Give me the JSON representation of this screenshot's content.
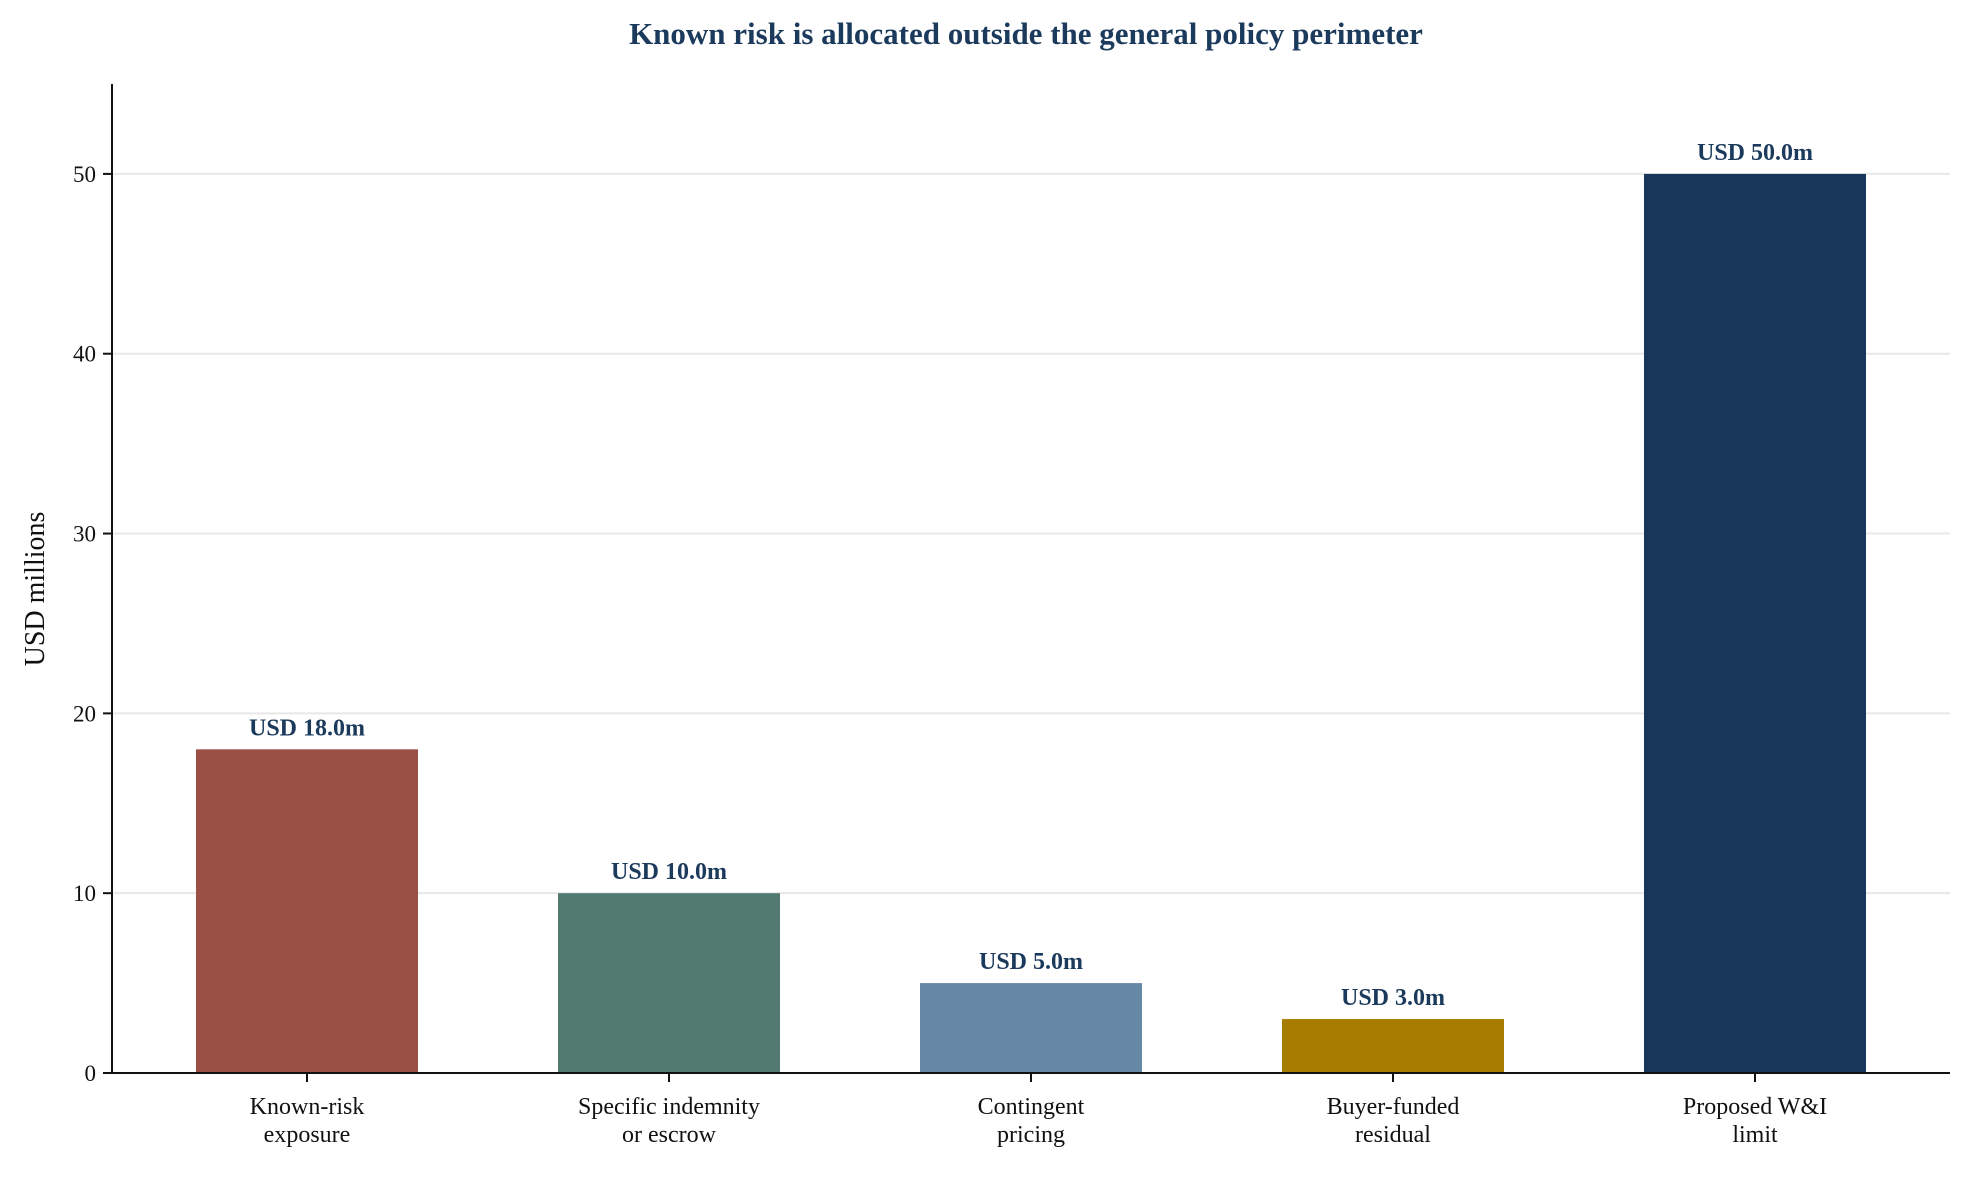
{
  "chart_data": {
    "type": "bar",
    "title": "Known risk is allocated outside the general policy perimeter",
    "xlabel": "",
    "ylabel": "USD millions",
    "ylim": [
      0,
      55
    ],
    "yticks": [
      0,
      10,
      20,
      30,
      40,
      50
    ],
    "grid": "horizontal",
    "legend": "none",
    "categories": [
      [
        "Known-risk",
        "exposure"
      ],
      [
        "Specific indemnity",
        "or escrow"
      ],
      [
        "Contingent",
        "pricing"
      ],
      [
        "Buyer-funded",
        "residual"
      ],
      [
        "Proposed W&I",
        "limit"
      ]
    ],
    "values": [
      18.0,
      10.0,
      5.0,
      3.0,
      50.0
    ],
    "data_labels": [
      "USD 18.0m",
      "USD 10.0m",
      "USD 5.0m",
      "USD 3.0m",
      "USD 50.0m"
    ],
    "colors": [
      "#9b5045",
      "#527a71",
      "#6787a6",
      "#a67d00",
      "#18365a"
    ],
    "title_color": "#1b3a5c",
    "label_color": "#1b3a5c",
    "grid_color": "#e8e8e8",
    "axis_color": "#111111"
  }
}
